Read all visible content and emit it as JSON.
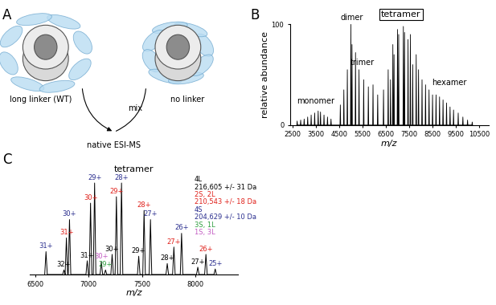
{
  "panel_labels": [
    "A",
    "B",
    "C"
  ],
  "diagram": {
    "left_label": "long linker (WT)",
    "right_label": "no linker",
    "arrow_label": "mix",
    "result_label": "native ESI-MS"
  },
  "chart_data": [
    {
      "type": "spectrum",
      "x_label": "m/z",
      "y_label": "relative abundance",
      "color": "#000000",
      "xlim": [
        2400,
        10900
      ],
      "xticks": [
        2500,
        3500,
        4500,
        5500,
        6500,
        7500,
        8500,
        9500,
        10500
      ],
      "ylim": [
        0,
        100
      ],
      "yticks": [
        0,
        100
      ],
      "x": [
        2700,
        2850,
        3000,
        3150,
        3300,
        3450,
        3600,
        3700,
        3850,
        4000,
        4150,
        4550,
        4700,
        4850,
        5000,
        5050,
        5200,
        5350,
        5550,
        5750,
        5950,
        6150,
        6400,
        6600,
        6700,
        6800,
        6850,
        7000,
        7050,
        7250,
        7300,
        7450,
        7550,
        7650,
        7800,
        7900,
        8050,
        8200,
        8350,
        8500,
        8650,
        8800,
        8950,
        9100,
        9250,
        9400,
        9600,
        9800,
        10000,
        10200
      ],
      "values": [
        4,
        5,
        6,
        8,
        10,
        12,
        14,
        13,
        10,
        8,
        6,
        20,
        35,
        55,
        100,
        80,
        72,
        55,
        45,
        38,
        40,
        30,
        35,
        55,
        45,
        80,
        70,
        95,
        90,
        98,
        92,
        85,
        90,
        60,
        70,
        55,
        45,
        40,
        35,
        30,
        30,
        28,
        25,
        22,
        18,
        15,
        12,
        8,
        5,
        3
      ],
      "annotations": [
        {
          "text": "monomer",
          "x": 3500,
          "y": 20
        },
        {
          "text": "dimer",
          "x": 5050,
          "y": 103
        },
        {
          "text": "trimer",
          "x": 5500,
          "y": 58
        },
        {
          "text": "tetramer",
          "x": 7150,
          "y": 106
        },
        {
          "text": "hexamer",
          "x": 9200,
          "y": 38
        }
      ]
    },
    {
      "type": "spectrum",
      "title": "tetramer",
      "x_label": "m/z",
      "color": "#000000",
      "xlim": [
        6450,
        8400
      ],
      "xticks": [
        6500,
        7000,
        7500,
        8000
      ],
      "ylim": [
        0,
        110
      ],
      "tick_labels": "x",
      "data_labels": true,
      "series": [
        {
          "name": "4L",
          "mass": "216,605 +/- 31 Da",
          "color": "#000000",
          "x": [
            6770,
            6988,
            7221,
            7470,
            7737,
            8023
          ],
          "values": [
            5,
            15,
            22,
            20,
            12,
            8
          ],
          "charges": [
            "32+",
            "31+",
            "30+",
            "29+",
            "28+",
            "27+"
          ]
        },
        {
          "name": "2S, 2L",
          "mass": "210,543 +/- 18 Da",
          "color": "#e0211b",
          "x": [
            6793,
            7019,
            7261,
            7520,
            7799,
            8099
          ],
          "values": [
            40,
            78,
            85,
            70,
            30,
            22
          ],
          "charges": [
            "31+",
            "30+",
            "29+",
            "28+",
            "27+",
            "26+"
          ]
        },
        {
          "name": "4S",
          "mass": "204,629 +/- 10 Da",
          "color": "#2b2f8f",
          "x": [
            6602,
            6822,
            7057,
            7309,
            7580,
            7871,
            8186
          ],
          "values": [
            25,
            60,
            100,
            100,
            60,
            45,
            6
          ],
          "charges": [
            "31+",
            "30+",
            "29+",
            "28+",
            "27+",
            "26+",
            "25+"
          ]
        },
        {
          "name": "3S, 1L",
          "color": "#2e9e3e",
          "x": [
            7159
          ],
          "values": [
            5
          ],
          "charges": [
            "29+"
          ]
        },
        {
          "name": "1S, 3L",
          "color": "#c25bc2",
          "x": [
            7120
          ],
          "values": [
            14
          ],
          "charges": [
            "30+"
          ]
        }
      ]
    }
  ]
}
